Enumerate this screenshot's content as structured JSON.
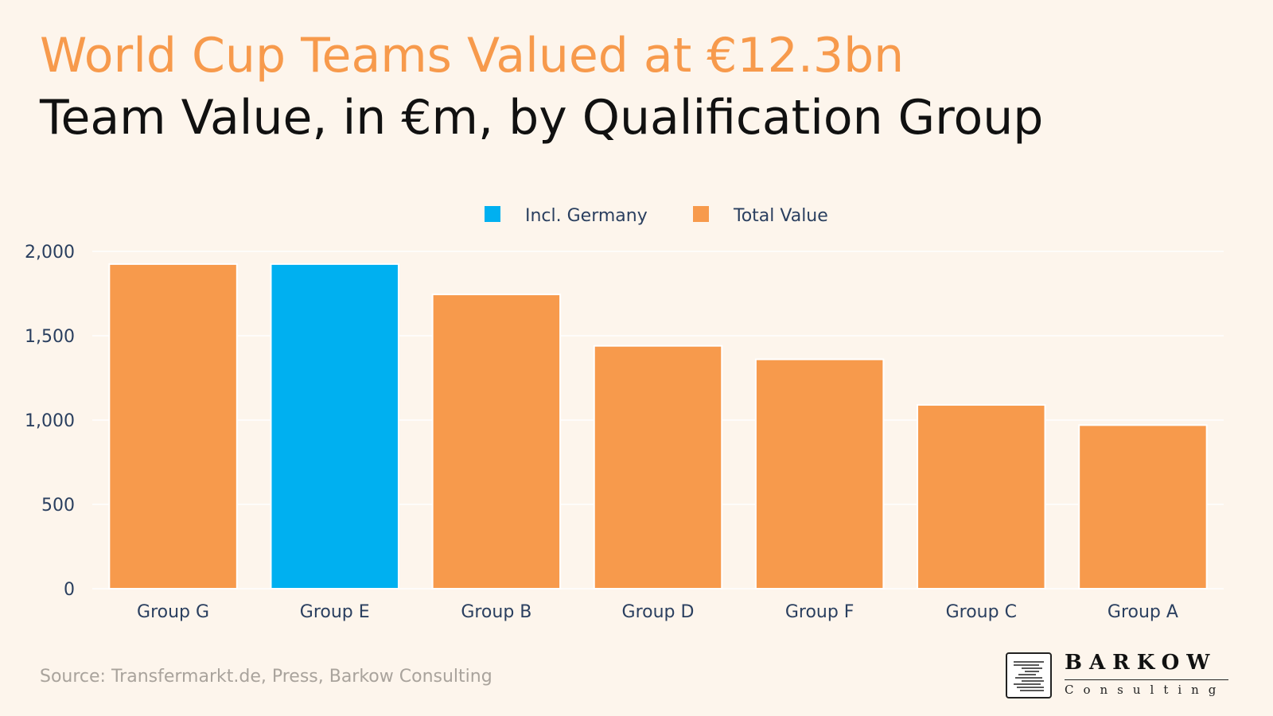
{
  "header": {
    "title": "World Cup Teams Valued at €12.3bn",
    "subtitle": "Team Value, in €m, by Qualification Group"
  },
  "footer": {
    "source": "Source: Transfermarkt.de, Press, Barkow Consulting",
    "logo_name": "BARKOW",
    "logo_sub": "Consulting"
  },
  "colors": {
    "background": "#fdf5ec",
    "total_value": "#f79a4c",
    "incl_germany": "#00b0f0",
    "grid": "#ffffff",
    "axis_text": "#2a3f5f"
  },
  "chart_data": {
    "type": "bar",
    "title": "Team Value, in €m, by Qualification Group",
    "xlabel": "",
    "ylabel": "",
    "ylim": [
      0,
      2000
    ],
    "yticks": [
      0,
      500,
      1000,
      1500,
      2000
    ],
    "ytick_labels": [
      "0",
      "500",
      "1,000",
      "1,500",
      "2,000"
    ],
    "grid": true,
    "legend_position": "top-center",
    "legend": [
      {
        "name": "Incl. Germany",
        "color": "#00b0f0"
      },
      {
        "name": "Total Value",
        "color": "#f79a4c"
      }
    ],
    "categories": [
      "Group G",
      "Group E",
      "Group B",
      "Group D",
      "Group F",
      "Group C",
      "Group A"
    ],
    "series": [
      {
        "name": "Total Value",
        "values": [
          1925,
          1925,
          1745,
          1440,
          1360,
          1090,
          970
        ],
        "highlight": [
          false,
          true,
          false,
          false,
          false,
          false,
          false
        ]
      }
    ]
  }
}
